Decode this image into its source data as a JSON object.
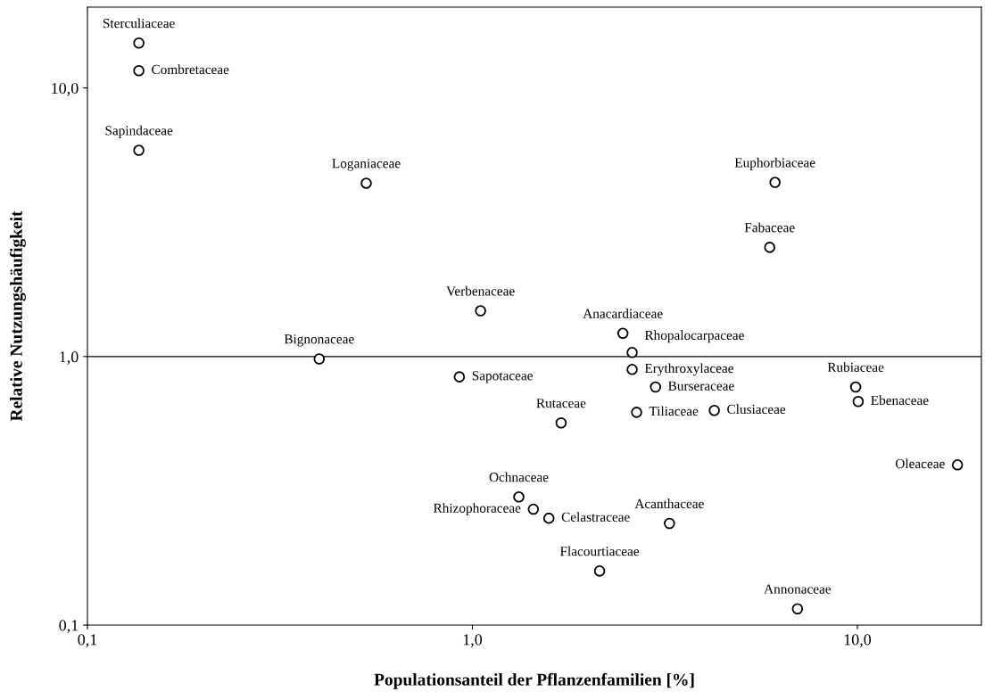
{
  "chart_data": {
    "type": "scatter",
    "xlabel": "Populationsanteil der Pflanzenfamilien [%]",
    "ylabel": "Relative Nutzungshäufigkeit",
    "log": "xy",
    "grid": false,
    "marker": "circle",
    "xlim": [
      0.1,
      21
    ],
    "ylim": [
      0.1,
      20
    ],
    "xticks": [
      {
        "value": 0.1,
        "label": "0,1"
      },
      {
        "value": 1,
        "label": "1,0"
      },
      {
        "value": 10,
        "label": "10,0"
      }
    ],
    "yticks": [
      {
        "value": 0.1,
        "label": "0,1"
      },
      {
        "value": 1,
        "label": "1,0"
      },
      {
        "value": 10,
        "label": "10,0"
      }
    ],
    "ref_lines": [
      {
        "axis": "y",
        "value": 1,
        "label": null,
        "color": "#000000"
      }
    ],
    "series": [
      {
        "color": "#000000",
        "x": [
          0.136,
          0.136,
          0.136,
          0.53,
          6.11,
          5.92,
          1.05,
          2.46,
          0.4,
          2.6,
          0.925,
          2.6,
          2.99,
          4.25,
          2.67,
          9.9,
          10.05,
          18.2,
          1.7,
          1.32,
          1.44,
          1.58,
          3.25,
          2.14,
          6.99
        ],
        "values": [
          14.7,
          11.6,
          5.86,
          4.42,
          4.45,
          2.55,
          1.48,
          1.22,
          0.98,
          1.035,
          0.84,
          0.895,
          0.77,
          0.63,
          0.62,
          0.77,
          0.68,
          0.395,
          0.566,
          0.3,
          0.27,
          0.25,
          0.239,
          0.159,
          0.115
        ],
        "value_labels": [
          "Sterculiaceae",
          "Combretaceae",
          "Sapindaceae",
          "Loganiaceae",
          "Euphorbiaceae",
          "Fabaceae",
          "Verbenaceae",
          "Anacardiaceae",
          "Bignonaceae",
          "Rhopalocarpaceae",
          "Sapotaceae",
          "Erythroxylaceae",
          "Burseraceae",
          "Clusiaceae",
          "Tiliaceae",
          "Rubiaceae",
          "Ebenaceae",
          "Oleaceae",
          "Rutaceae",
          "Ochnaceae",
          "Rhizophoraceae",
          "Celastraceae",
          "Acanthaceae",
          "Flacourtiaceae",
          "Annonaceae"
        ]
      }
    ]
  }
}
